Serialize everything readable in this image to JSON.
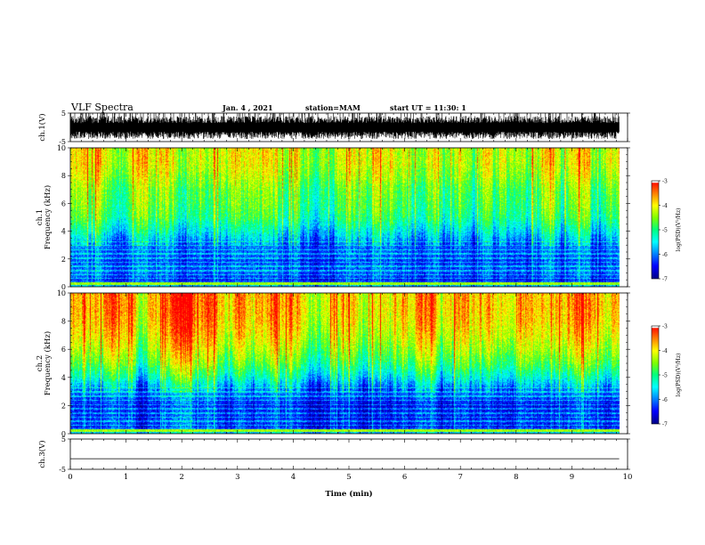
{
  "header": {
    "title": "VLF Spectra",
    "date": "Jan. 4 , 2021",
    "station": "station=MAM",
    "start": "start UT =  11:30: 1"
  },
  "chart_data": [
    {
      "type": "line",
      "panel": "ch.1 waveform",
      "ylabel": "ch.1(V)",
      "ylim": [
        -5,
        5
      ],
      "yticks": [
        "5",
        "-5"
      ],
      "x_unit": "min",
      "xlim": [
        0,
        10
      ],
      "data_extent_min": 9.85,
      "description_of_signal": "dense impulsive waveform spanning roughly -4 to +5 V"
    },
    {
      "type": "heatmap",
      "panel": "ch.1 spectrogram",
      "ylabel": [
        "ch.1",
        "Frequency (kHz)"
      ],
      "ylim": [
        0,
        10
      ],
      "yticks": [
        "0",
        "2",
        "4",
        "6",
        "8",
        "10"
      ],
      "xlim": [
        0,
        10
      ],
      "data_extent_min": 9.85,
      "colorbar": {
        "label": "log(PSD)(V²/Hz)",
        "range": [
          -7,
          -3
        ],
        "ticks": [
          "-3",
          "-4",
          "-5",
          "-6",
          "-7"
        ]
      },
      "frequency_profile_kHz": [
        0,
        0.5,
        1,
        2,
        3,
        4,
        5,
        6,
        7,
        8,
        9,
        10
      ],
      "frequency_profile_logpsd": [
        -5.6,
        -6.4,
        -6.2,
        -6.3,
        -6.1,
        -5.5,
        -5.0,
        -4.8,
        -4.7,
        -4.4,
        -4.2,
        -4.2
      ]
    },
    {
      "type": "heatmap",
      "panel": "ch.2 spectrogram",
      "ylabel": [
        "ch.2",
        "Frequency (kHz)"
      ],
      "ylim": [
        0,
        10
      ],
      "yticks": [
        "0",
        "2",
        "4",
        "6",
        "8",
        "10"
      ],
      "xlim": [
        0,
        10
      ],
      "data_extent_min": 9.85,
      "colorbar": {
        "label": "log(PSD)(V²/Hz)",
        "range": [
          -7,
          -3
        ],
        "ticks": [
          "-3",
          "-4",
          "-5",
          "-6",
          "-7"
        ]
      },
      "frequency_profile_kHz": [
        0,
        0.5,
        1,
        2,
        3,
        4,
        5,
        6,
        7,
        8,
        9,
        10
      ],
      "frequency_profile_logpsd": [
        -5.4,
        -6.3,
        -6.3,
        -6.4,
        -6.0,
        -5.2,
        -4.6,
        -4.2,
        -3.9,
        -3.7,
        -3.6,
        -3.6
      ]
    },
    {
      "type": "line",
      "panel": "ch.3 waveform",
      "ylabel": "ch.3(V)",
      "ylim": [
        -5,
        5
      ],
      "yticks": [
        "5",
        "-5"
      ],
      "xlim": [
        0,
        10
      ],
      "data_extent_min": 9.85,
      "values": [
        [
          0,
          -1.5
        ],
        [
          9.85,
          -1.5
        ]
      ]
    }
  ],
  "xaxis": {
    "label": "Time (min)",
    "ticks": [
      "0",
      "1",
      "2",
      "3",
      "4",
      "5",
      "6",
      "7",
      "8",
      "9",
      "10"
    ]
  },
  "colors": {
    "colormap": [
      "#00008a",
      "#0000ff",
      "#0080ff",
      "#00ffff",
      "#00ff80",
      "#80ff00",
      "#ffff00",
      "#ff8000",
      "#ff0000",
      "#ffffff"
    ],
    "axes": "#000000",
    "background": "#ffffff"
  }
}
